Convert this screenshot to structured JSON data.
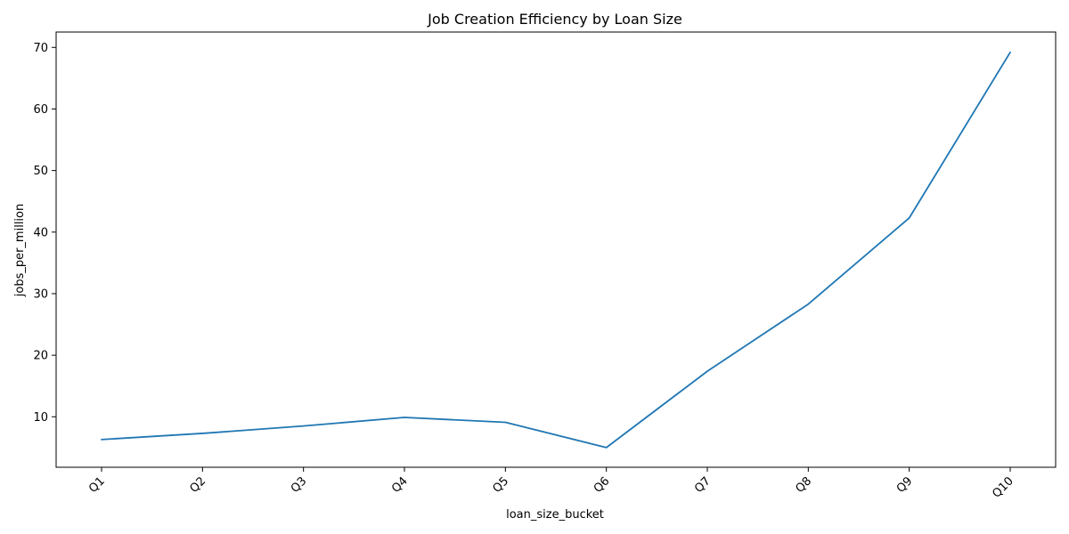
{
  "chart_data": {
    "type": "line",
    "title": "Job Creation Efficiency by Loan Size",
    "xlabel": "loan_size_bucket",
    "ylabel": "jobs_per_million",
    "categories": [
      "Q1",
      "Q2",
      "Q3",
      "Q4",
      "Q5",
      "Q6",
      "Q7",
      "Q8",
      "Q9",
      "Q10"
    ],
    "series": [
      {
        "values": [
          6.3,
          7.3,
          8.5,
          9.9,
          9.1,
          5.0,
          17.4,
          28.3,
          42.3,
          69.2
        ],
        "color": "#1f77b4"
      }
    ],
    "ylim": [
      1.8,
      72.5
    ],
    "yticks": [
      10,
      20,
      30,
      40,
      50,
      60,
      70
    ],
    "grid": false,
    "legend": "none"
  }
}
